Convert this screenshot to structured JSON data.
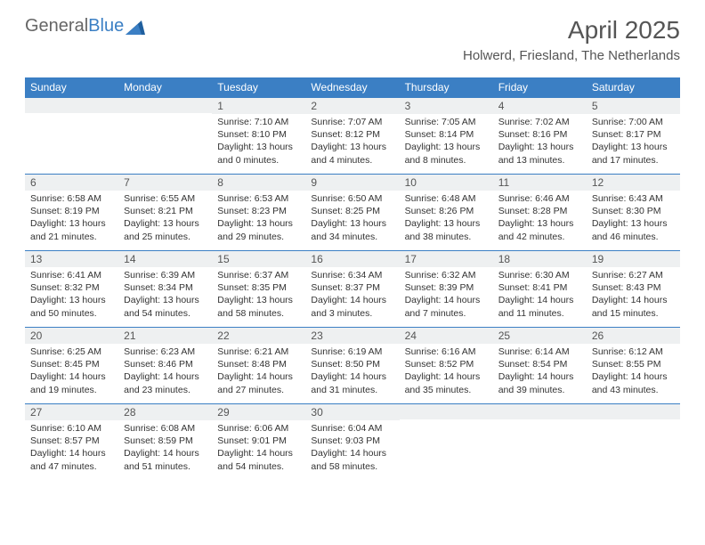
{
  "logo": {
    "text_general": "General",
    "text_blue": "Blue"
  },
  "title": "April 2025",
  "location": "Holwerd, Friesland, The Netherlands",
  "colors": {
    "header_bg": "#3b7fc4",
    "header_text": "#ffffff",
    "daynum_bg": "#eef0f1",
    "divider": "#3b7fc4",
    "body_text": "#333333",
    "title_text": "#555555"
  },
  "day_headers": [
    "Sunday",
    "Monday",
    "Tuesday",
    "Wednesday",
    "Thursday",
    "Friday",
    "Saturday"
  ],
  "weeks": [
    [
      null,
      null,
      {
        "n": "1",
        "sr": "Sunrise: 7:10 AM",
        "ss": "Sunset: 8:10 PM",
        "dl": "Daylight: 13 hours and 0 minutes."
      },
      {
        "n": "2",
        "sr": "Sunrise: 7:07 AM",
        "ss": "Sunset: 8:12 PM",
        "dl": "Daylight: 13 hours and 4 minutes."
      },
      {
        "n": "3",
        "sr": "Sunrise: 7:05 AM",
        "ss": "Sunset: 8:14 PM",
        "dl": "Daylight: 13 hours and 8 minutes."
      },
      {
        "n": "4",
        "sr": "Sunrise: 7:02 AM",
        "ss": "Sunset: 8:16 PM",
        "dl": "Daylight: 13 hours and 13 minutes."
      },
      {
        "n": "5",
        "sr": "Sunrise: 7:00 AM",
        "ss": "Sunset: 8:17 PM",
        "dl": "Daylight: 13 hours and 17 minutes."
      }
    ],
    [
      {
        "n": "6",
        "sr": "Sunrise: 6:58 AM",
        "ss": "Sunset: 8:19 PM",
        "dl": "Daylight: 13 hours and 21 minutes."
      },
      {
        "n": "7",
        "sr": "Sunrise: 6:55 AM",
        "ss": "Sunset: 8:21 PM",
        "dl": "Daylight: 13 hours and 25 minutes."
      },
      {
        "n": "8",
        "sr": "Sunrise: 6:53 AM",
        "ss": "Sunset: 8:23 PM",
        "dl": "Daylight: 13 hours and 29 minutes."
      },
      {
        "n": "9",
        "sr": "Sunrise: 6:50 AM",
        "ss": "Sunset: 8:25 PM",
        "dl": "Daylight: 13 hours and 34 minutes."
      },
      {
        "n": "10",
        "sr": "Sunrise: 6:48 AM",
        "ss": "Sunset: 8:26 PM",
        "dl": "Daylight: 13 hours and 38 minutes."
      },
      {
        "n": "11",
        "sr": "Sunrise: 6:46 AM",
        "ss": "Sunset: 8:28 PM",
        "dl": "Daylight: 13 hours and 42 minutes."
      },
      {
        "n": "12",
        "sr": "Sunrise: 6:43 AM",
        "ss": "Sunset: 8:30 PM",
        "dl": "Daylight: 13 hours and 46 minutes."
      }
    ],
    [
      {
        "n": "13",
        "sr": "Sunrise: 6:41 AM",
        "ss": "Sunset: 8:32 PM",
        "dl": "Daylight: 13 hours and 50 minutes."
      },
      {
        "n": "14",
        "sr": "Sunrise: 6:39 AM",
        "ss": "Sunset: 8:34 PM",
        "dl": "Daylight: 13 hours and 54 minutes."
      },
      {
        "n": "15",
        "sr": "Sunrise: 6:37 AM",
        "ss": "Sunset: 8:35 PM",
        "dl": "Daylight: 13 hours and 58 minutes."
      },
      {
        "n": "16",
        "sr": "Sunrise: 6:34 AM",
        "ss": "Sunset: 8:37 PM",
        "dl": "Daylight: 14 hours and 3 minutes."
      },
      {
        "n": "17",
        "sr": "Sunrise: 6:32 AM",
        "ss": "Sunset: 8:39 PM",
        "dl": "Daylight: 14 hours and 7 minutes."
      },
      {
        "n": "18",
        "sr": "Sunrise: 6:30 AM",
        "ss": "Sunset: 8:41 PM",
        "dl": "Daylight: 14 hours and 11 minutes."
      },
      {
        "n": "19",
        "sr": "Sunrise: 6:27 AM",
        "ss": "Sunset: 8:43 PM",
        "dl": "Daylight: 14 hours and 15 minutes."
      }
    ],
    [
      {
        "n": "20",
        "sr": "Sunrise: 6:25 AM",
        "ss": "Sunset: 8:45 PM",
        "dl": "Daylight: 14 hours and 19 minutes."
      },
      {
        "n": "21",
        "sr": "Sunrise: 6:23 AM",
        "ss": "Sunset: 8:46 PM",
        "dl": "Daylight: 14 hours and 23 minutes."
      },
      {
        "n": "22",
        "sr": "Sunrise: 6:21 AM",
        "ss": "Sunset: 8:48 PM",
        "dl": "Daylight: 14 hours and 27 minutes."
      },
      {
        "n": "23",
        "sr": "Sunrise: 6:19 AM",
        "ss": "Sunset: 8:50 PM",
        "dl": "Daylight: 14 hours and 31 minutes."
      },
      {
        "n": "24",
        "sr": "Sunrise: 6:16 AM",
        "ss": "Sunset: 8:52 PM",
        "dl": "Daylight: 14 hours and 35 minutes."
      },
      {
        "n": "25",
        "sr": "Sunrise: 6:14 AM",
        "ss": "Sunset: 8:54 PM",
        "dl": "Daylight: 14 hours and 39 minutes."
      },
      {
        "n": "26",
        "sr": "Sunrise: 6:12 AM",
        "ss": "Sunset: 8:55 PM",
        "dl": "Daylight: 14 hours and 43 minutes."
      }
    ],
    [
      {
        "n": "27",
        "sr": "Sunrise: 6:10 AM",
        "ss": "Sunset: 8:57 PM",
        "dl": "Daylight: 14 hours and 47 minutes."
      },
      {
        "n": "28",
        "sr": "Sunrise: 6:08 AM",
        "ss": "Sunset: 8:59 PM",
        "dl": "Daylight: 14 hours and 51 minutes."
      },
      {
        "n": "29",
        "sr": "Sunrise: 6:06 AM",
        "ss": "Sunset: 9:01 PM",
        "dl": "Daylight: 14 hours and 54 minutes."
      },
      {
        "n": "30",
        "sr": "Sunrise: 6:04 AM",
        "ss": "Sunset: 9:03 PM",
        "dl": "Daylight: 14 hours and 58 minutes."
      },
      null,
      null,
      null
    ]
  ]
}
